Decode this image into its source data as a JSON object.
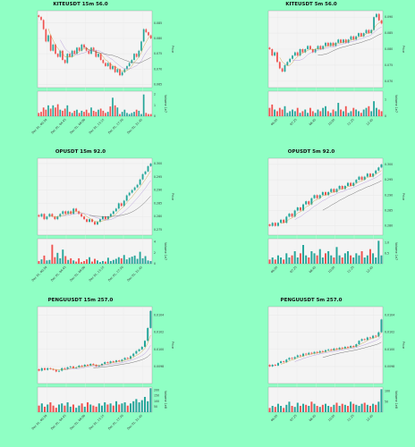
{
  "background": "#8fffc4",
  "colors": {
    "up": "#26a69a",
    "down": "#ef5350",
    "ma1": "#c49a2c",
    "ma2": "#a98cd6",
    "ma3": "#555555"
  },
  "chart_data": [
    {
      "type": "candlestick",
      "title": "KITEUSDT 15m 56.0",
      "ylabel": "Price",
      "vol_label": "Volume 1e7",
      "yticks": [
        "0.085",
        "0.080",
        "0.075",
        "0.070",
        "0.065"
      ],
      "ylim": [
        0.064,
        0.089
      ],
      "vol_ticks": [
        "2",
        "1",
        "0"
      ],
      "vol_lim": [
        0,
        2.3
      ],
      "xticks": [
        "Dec 01, 00:30",
        "Dec 01, 04:45",
        "Dec 01, 09:00",
        "Dec 01, 13:15",
        "Dec 01, 17:30",
        "Dec 01, 21:45"
      ],
      "close": [
        0.087,
        0.086,
        0.083,
        0.079,
        0.081,
        0.076,
        0.078,
        0.075,
        0.074,
        0.076,
        0.073,
        0.072,
        0.075,
        0.074,
        0.076,
        0.075,
        0.077,
        0.076,
        0.078,
        0.077,
        0.076,
        0.075,
        0.077,
        0.076,
        0.074,
        0.075,
        0.073,
        0.072,
        0.071,
        0.072,
        0.07,
        0.071,
        0.069,
        0.07,
        0.068,
        0.069,
        0.07,
        0.071,
        0.072,
        0.073,
        0.075,
        0.074,
        0.076,
        0.079,
        0.083,
        0.082,
        0.081,
        0.08
      ],
      "volume": [
        0.3,
        0.4,
        0.8,
        0.6,
        1.0,
        0.7,
        1.0,
        0.8,
        1.1,
        0.6,
        0.5,
        0.7,
        1.0,
        0.4,
        0.3,
        0.5,
        0.6,
        0.3,
        0.5,
        0.4,
        0.6,
        0.3,
        0.8,
        0.5,
        0.4,
        0.6,
        0.7,
        0.5,
        0.3,
        0.4,
        0.9,
        1.7,
        1.0,
        0.8,
        0.2,
        0.4,
        0.6,
        0.3,
        0.2,
        0.3,
        0.4,
        0.6,
        0.5,
        0.2,
        2.0,
        0.3,
        0.2,
        0.2
      ]
    },
    {
      "type": "candlestick",
      "title": "KITEUSDT 5m 56.0",
      "ylabel": "Price",
      "vol_label": "Volume 1e7",
      "yticks": [
        "0.090",
        "0.085",
        "0.080",
        "0.075",
        "0.070"
      ],
      "ylim": [
        0.068,
        0.092
      ],
      "vol_ticks": [
        "1",
        "0"
      ],
      "vol_lim": [
        0,
        1.5
      ],
      "xticks": [
        "06:05",
        "07:25",
        "08:45",
        "10:05",
        "11:25",
        "12:45"
      ],
      "close": [
        0.08,
        0.078,
        0.079,
        0.076,
        0.074,
        0.073,
        0.075,
        0.076,
        0.077,
        0.078,
        0.079,
        0.078,
        0.08,
        0.079,
        0.08,
        0.081,
        0.08,
        0.079,
        0.08,
        0.081,
        0.08,
        0.081,
        0.082,
        0.081,
        0.082,
        0.081,
        0.082,
        0.083,
        0.082,
        0.083,
        0.082,
        0.083,
        0.084,
        0.083,
        0.084,
        0.085,
        0.084,
        0.085,
        0.086,
        0.085,
        0.086,
        0.09,
        0.091,
        0.089,
        0.088
      ],
      "volume": [
        0.5,
        0.7,
        0.4,
        0.3,
        0.5,
        0.4,
        0.6,
        0.2,
        0.3,
        0.4,
        0.3,
        0.5,
        0.2,
        0.3,
        0.4,
        0.2,
        0.5,
        0.3,
        0.2,
        0.4,
        0.3,
        0.5,
        0.6,
        0.3,
        0.2,
        0.4,
        0.3,
        0.8,
        0.4,
        0.3,
        0.6,
        0.2,
        0.3,
        0.5,
        0.4,
        0.3,
        0.2,
        0.4,
        0.5,
        0.6,
        0.3,
        0.9,
        0.5,
        0.4,
        0.3
      ]
    },
    {
      "type": "candlestick",
      "title": "OPUSDT 15m 92.0",
      "ylabel": "Price",
      "vol_label": "Volume 1e7",
      "yticks": [
        "0.300",
        "0.295",
        "0.290",
        "0.285",
        "0.280",
        "0.275"
      ],
      "ylim": [
        0.273,
        0.302
      ],
      "vol_ticks": [
        "4",
        "2",
        "0"
      ],
      "vol_lim": [
        0,
        4.6
      ],
      "xticks": [
        "Dec 01, 00:30",
        "Dec 01, 04:45",
        "Dec 01, 09:00",
        "Dec 01, 13:15",
        "Dec 01, 17:30",
        "Dec 01, 21:45"
      ],
      "close": [
        0.28,
        0.281,
        0.279,
        0.28,
        0.281,
        0.28,
        0.279,
        0.28,
        0.281,
        0.282,
        0.281,
        0.282,
        0.281,
        0.283,
        0.282,
        0.281,
        0.28,
        0.279,
        0.278,
        0.279,
        0.278,
        0.277,
        0.278,
        0.279,
        0.28,
        0.279,
        0.28,
        0.281,
        0.282,
        0.283,
        0.285,
        0.284,
        0.286,
        0.288,
        0.289,
        0.29,
        0.291,
        0.292,
        0.294,
        0.296,
        0.297,
        0.299,
        0.3
      ],
      "volume": [
        0.5,
        0.8,
        1.5,
        0.6,
        0.7,
        3.5,
        1.2,
        2.0,
        1.0,
        2.6,
        1.4,
        0.7,
        1.0,
        0.6,
        0.4,
        1.0,
        0.3,
        0.5,
        0.8,
        1.2,
        0.4,
        0.9,
        0.6,
        0.3,
        0.5,
        0.4,
        1.1,
        0.5,
        0.7,
        0.9,
        1.2,
        1.0,
        1.6,
        0.8,
        1.1,
        1.3,
        1.5,
        0.9,
        2.2,
        1.0,
        1.4,
        0.6,
        0.5
      ]
    },
    {
      "type": "candlestick",
      "title": "OPUSDT 5m 92.0",
      "ylabel": "Price",
      "vol_label": "Volume 1e7",
      "yticks": [
        "0.300",
        "0.295",
        "0.290",
        "0.285",
        "0.280"
      ],
      "ylim": [
        0.277,
        0.302
      ],
      "vol_ticks": [
        "1.0",
        "0.5"
      ],
      "vol_lim": [
        0,
        1.2
      ],
      "xticks": [
        "06:05",
        "07:25",
        "08:45",
        "10:05",
        "11:25",
        "12:45"
      ],
      "close": [
        0.28,
        0.281,
        0.28,
        0.281,
        0.282,
        0.281,
        0.283,
        0.284,
        0.283,
        0.285,
        0.286,
        0.285,
        0.287,
        0.288,
        0.287,
        0.289,
        0.29,
        0.289,
        0.29,
        0.291,
        0.29,
        0.291,
        0.292,
        0.291,
        0.292,
        0.293,
        0.292,
        0.293,
        0.294,
        0.293,
        0.294,
        0.295,
        0.296,
        0.295,
        0.296,
        0.297,
        0.296,
        0.297,
        0.298,
        0.299,
        0.3
      ],
      "volume": [
        0.2,
        0.3,
        0.2,
        0.4,
        0.3,
        0.2,
        0.5,
        0.3,
        0.4,
        0.6,
        0.3,
        0.5,
        0.9,
        0.4,
        0.3,
        0.6,
        0.5,
        0.4,
        0.7,
        0.3,
        0.5,
        0.6,
        0.4,
        0.3,
        0.8,
        0.4,
        0.3,
        0.5,
        0.6,
        0.4,
        0.3,
        0.5,
        0.4,
        0.6,
        0.3,
        0.4,
        0.7,
        0.5,
        0.3,
        1.1,
        0.4
      ]
    },
    {
      "type": "candlestick",
      "title": "PENGUUSDT 15m 257.0",
      "ylabel": "Price",
      "vol_label": "Volume 1e8",
      "yticks": [
        "0.0104",
        "0.0102",
        "0.0100",
        "0.0098"
      ],
      "ylim": [
        0.0096,
        0.0105
      ],
      "vol_ticks": [
        "200",
        "150",
        "100",
        "50"
      ],
      "vol_lim": [
        0,
        230
      ],
      "xticks": [
        "Dec 01, 00:30",
        "Dec 01, 04:45",
        "Dec 01, 09:00",
        "Dec 01, 13:15",
        "Dec 01, 17:30",
        "Dec 01, 21:45"
      ],
      "close": [
        0.00975,
        0.00978,
        0.00976,
        0.00978,
        0.00977,
        0.00976,
        0.00974,
        0.00975,
        0.00978,
        0.00977,
        0.00979,
        0.0098,
        0.00978,
        0.00979,
        0.00981,
        0.0098,
        0.00982,
        0.00981,
        0.00983,
        0.00982,
        0.0098,
        0.00981,
        0.00983,
        0.00985,
        0.00984,
        0.00986,
        0.00985,
        0.00987,
        0.00986,
        0.00988,
        0.0099,
        0.00989,
        0.00992,
        0.00995,
        0.00998,
        0.01,
        0.01003,
        0.0101,
        0.01025,
        0.01045
      ],
      "volume": [
        60,
        80,
        50,
        70,
        90,
        60,
        40,
        70,
        80,
        60,
        90,
        50,
        70,
        40,
        60,
        80,
        50,
        90,
        70,
        60,
        50,
        80,
        60,
        90,
        70,
        80,
        60,
        100,
        70,
        80,
        90,
        60,
        80,
        100,
        120,
        90,
        110,
        140,
        100,
        220
      ]
    },
    {
      "type": "candlestick",
      "title": "PENGUUSDT 5m 257.0",
      "ylabel": "Price",
      "vol_label": "Volume 1e8",
      "yticks": [
        "0.0104",
        "0.0102",
        "0.0100",
        "0.0098"
      ],
      "ylim": [
        0.0096,
        0.0105
      ],
      "vol_ticks": [
        "100",
        "50"
      ],
      "vol_lim": [
        0,
        120
      ],
      "xticks": [
        "06:05",
        "07:25",
        "08:45",
        "10:05",
        "11:25",
        "12:45"
      ],
      "close": [
        0.0098,
        0.00982,
        0.00981,
        0.00984,
        0.00986,
        0.00985,
        0.00988,
        0.0099,
        0.00989,
        0.00991,
        0.00993,
        0.00992,
        0.00995,
        0.00994,
        0.00996,
        0.00995,
        0.00997,
        0.00996,
        0.00998,
        0.00997,
        0.00999,
        0.01,
        0.00999,
        0.01001,
        0.01,
        0.01002,
        0.01001,
        0.01003,
        0.01002,
        0.01004,
        0.01003,
        0.01006,
        0.0101,
        0.01012,
        0.01011,
        0.01014,
        0.01013,
        0.01016,
        0.01015,
        0.0102,
        0.01035
      ],
      "volume": [
        20,
        30,
        25,
        40,
        30,
        20,
        35,
        50,
        30,
        25,
        45,
        30,
        40,
        35,
        30,
        50,
        40,
        30,
        25,
        35,
        40,
        30,
        25,
        35,
        45,
        30,
        40,
        35,
        30,
        50,
        40,
        35,
        30,
        40,
        45,
        35,
        30,
        40,
        35,
        50,
        110
      ]
    }
  ]
}
